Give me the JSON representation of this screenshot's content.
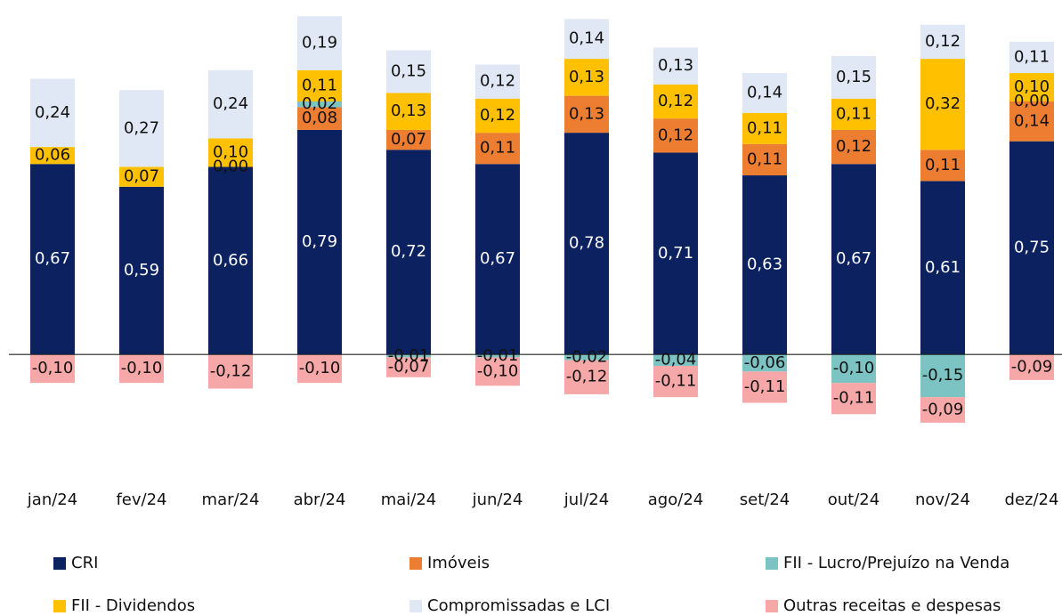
{
  "chart_data": {
    "type": "stacked_bar",
    "categories": [
      "jan/24",
      "fev/24",
      "mar/24",
      "abr/24",
      "mai/24",
      "jun/24",
      "jul/24",
      "ago/24",
      "set/24",
      "out/24",
      "nov/24",
      "dez/24"
    ],
    "ylim": [
      -0.3,
      1.2
    ],
    "series": [
      {
        "name": "CRI",
        "color": "#0b2160",
        "values": [
          0.67,
          0.59,
          0.66,
          0.79,
          0.72,
          0.67,
          0.78,
          0.71,
          0.63,
          0.67,
          0.61,
          0.75
        ],
        "value_labels": [
          "0,67",
          "0,59",
          "0,66",
          "0,79",
          "0,72",
          "0,67",
          "0,78",
          "0,71",
          "0,63",
          "0,67",
          "0,61",
          "0,75"
        ]
      },
      {
        "name": "Imóveis",
        "color": "#ed7d31",
        "values": [
          null,
          null,
          0.0,
          0.08,
          0.07,
          0.11,
          0.13,
          0.12,
          0.11,
          0.12,
          0.11,
          0.14
        ],
        "value_labels": [
          null,
          null,
          "0,00",
          "0,08",
          "0,07",
          "0,11",
          "0,13",
          "0,12",
          "0,11",
          "0,12",
          "0,11",
          "0,14"
        ]
      },
      {
        "name": "FII - Lucro/Prejuízo na Venda",
        "color": "#7cc3c4",
        "values": [
          null,
          null,
          null,
          0.02,
          -0.01,
          -0.01,
          -0.02,
          -0.04,
          -0.06,
          -0.1,
          -0.15,
          0.0
        ],
        "value_labels": [
          null,
          null,
          null,
          "0,02",
          "-0,01",
          "-0,01",
          "-0,02",
          "-0,04",
          "-0,06",
          "-0,10",
          "-0,15",
          "0,00"
        ]
      },
      {
        "name": "FII - Dividendos",
        "color": "#ffc000",
        "values": [
          0.06,
          0.07,
          0.1,
          0.11,
          0.13,
          0.12,
          0.13,
          0.12,
          0.11,
          0.11,
          0.32,
          0.1
        ],
        "value_labels": [
          "0,06",
          "0,07",
          "0,10",
          "0,11",
          "0,13",
          "0,12",
          "0,13",
          "0,12",
          "0,11",
          "0,11",
          "0,32",
          "0,10"
        ]
      },
      {
        "name": "Compromissadas e LCI",
        "color": "#dfe8f4",
        "values": [
          0.24,
          0.27,
          0.24,
          0.19,
          0.15,
          0.12,
          0.14,
          0.13,
          0.14,
          0.15,
          0.12,
          0.11
        ],
        "value_labels": [
          "0,24",
          "0,27",
          "0,24",
          "0,19",
          "0,15",
          "0,12",
          "0,14",
          "0,13",
          "0,14",
          "0,15",
          "0,12",
          "0,11"
        ]
      },
      {
        "name": "Outras receitas e despesas",
        "color": "#f6a8a8",
        "values": [
          -0.1,
          -0.1,
          -0.12,
          -0.1,
          -0.07,
          -0.1,
          -0.12,
          -0.11,
          -0.11,
          -0.11,
          -0.09,
          -0.09
        ],
        "value_labels": [
          "-0,10",
          "-0,10",
          "-0,12",
          "-0,10",
          "-0,07",
          "-0,10",
          "-0,12",
          "-0,11",
          "-0,11",
          "-0,11",
          "-0,09",
          "-0,09"
        ]
      }
    ]
  }
}
